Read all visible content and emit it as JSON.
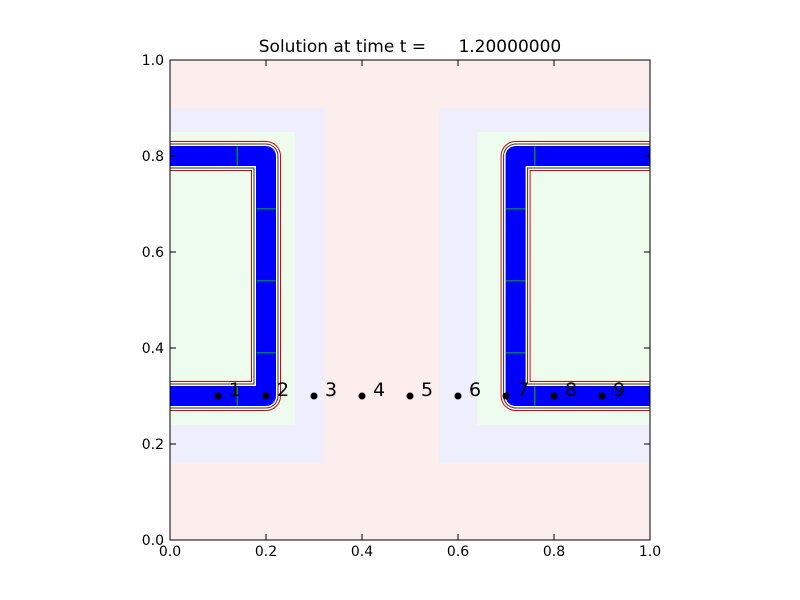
{
  "chart_data": {
    "type": "scatter",
    "title": "Solution at time t =      1.20000000",
    "xlabel": "",
    "ylabel": "",
    "xlim": [
      0.0,
      1.0
    ],
    "ylim": [
      0.0,
      1.0
    ],
    "x_ticks": [
      "0.0",
      "0.2",
      "0.4",
      "0.6",
      "0.8",
      "1.0"
    ],
    "y_ticks": [
      "0.0",
      "0.2",
      "0.4",
      "0.6",
      "0.8",
      "1.0"
    ],
    "grid": false,
    "legend": "none",
    "gauges": {
      "x": [
        0.1,
        0.2,
        0.3,
        0.4,
        0.5,
        0.6,
        0.7,
        0.8,
        0.9
      ],
      "y": [
        0.3,
        0.3,
        0.3,
        0.3,
        0.3,
        0.3,
        0.3,
        0.3,
        0.3
      ],
      "labels": [
        "1",
        "2",
        "3",
        "4",
        "5",
        "6",
        "7",
        "8",
        "9"
      ]
    },
    "background_regions": [
      {
        "level": 1,
        "color": "#fdeeee",
        "x": [
          0.0,
          1.0
        ],
        "y": [
          0.0,
          1.0
        ]
      },
      {
        "level": 2,
        "color": "#eeeefc",
        "x": [
          0.0,
          0.32
        ],
        "y": [
          0.16,
          0.9
        ]
      },
      {
        "level": 2,
        "color": "#eeeefc",
        "x": [
          0.56,
          1.0
        ],
        "y": [
          0.16,
          0.9
        ]
      },
      {
        "level": 3,
        "color": "#eefcee",
        "x": [
          0.0,
          0.26
        ],
        "y": [
          0.24,
          0.85
        ]
      },
      {
        "level": 3,
        "color": "#eefcee",
        "x": [
          0.64,
          1.0
        ],
        "y": [
          0.24,
          0.85
        ]
      }
    ],
    "channels": [
      {
        "name": "left",
        "path_x": [
          0.0,
          0.2,
          0.2,
          0.0
        ],
        "path_y": [
          0.8,
          0.8,
          0.3,
          0.3
        ]
      },
      {
        "name": "right",
        "path_x": [
          1.0,
          0.72,
          0.72,
          1.0
        ],
        "path_y": [
          0.8,
          0.8,
          0.3,
          0.3
        ]
      }
    ],
    "colors": {
      "fill": "#0000ff",
      "contour_outer": "#e00000",
      "contour_inner": "#333333",
      "patch_edge": "#00aa00",
      "gauge_point": "#000000",
      "axes": "#000000"
    }
  }
}
